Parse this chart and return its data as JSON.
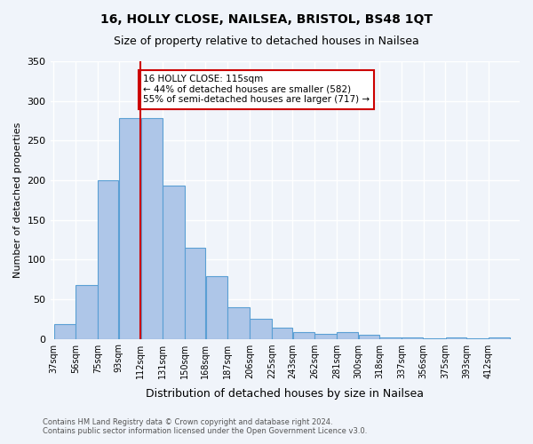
{
  "title1": "16, HOLLY CLOSE, NAILSEA, BRISTOL, BS48 1QT",
  "title2": "Size of property relative to detached houses in Nailsea",
  "xlabel": "Distribution of detached houses by size in Nailsea",
  "ylabel": "Number of detached properties",
  "bin_labels": [
    "37sqm",
    "56sqm",
    "75sqm",
    "93sqm",
    "112sqm",
    "131sqm",
    "150sqm",
    "168sqm",
    "187sqm",
    "206sqm",
    "225sqm",
    "243sqm",
    "262sqm",
    "281sqm",
    "300sqm",
    "318sqm",
    "337sqm",
    "356sqm",
    "375sqm",
    "393sqm",
    "412sqm"
  ],
  "bin_edges": [
    37,
    56,
    75,
    93,
    112,
    131,
    150,
    168,
    187,
    206,
    225,
    243,
    262,
    281,
    300,
    318,
    337,
    356,
    375,
    393,
    412,
    431
  ],
  "bar_heights": [
    18,
    68,
    200,
    278,
    278,
    193,
    115,
    79,
    40,
    25,
    14,
    8,
    6,
    8,
    5,
    2,
    2,
    1,
    2,
    1,
    2
  ],
  "bar_color": "#aec6e8",
  "bar_edge_color": "#5a9fd4",
  "property_line_x": 112,
  "annotation_box_text": "16 HOLLY CLOSE: 115sqm\n← 44% of detached houses are smaller (582)\n55% of semi-detached houses are larger (717) →",
  "annotation_box_color": "#ffffff",
  "annotation_box_edgecolor": "#cc0000",
  "vline_color": "#cc0000",
  "ylim": [
    0,
    350
  ],
  "yticks": [
    0,
    50,
    100,
    150,
    200,
    250,
    300,
    350
  ],
  "footer_line1": "Contains HM Land Registry data © Crown copyright and database right 2024.",
  "footer_line2": "Contains public sector information licensed under the Open Government Licence v3.0.",
  "bg_color": "#f0f4fa",
  "grid_color": "#ffffff"
}
